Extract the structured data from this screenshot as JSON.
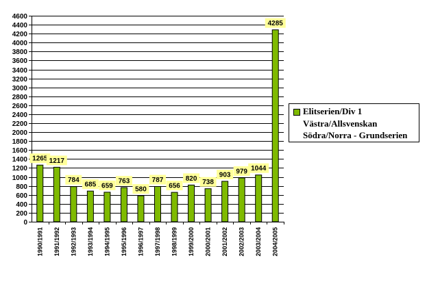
{
  "chart_data": {
    "type": "bar",
    "categories": [
      "1990/1991",
      "1991/1992",
      "1992/1993",
      "1993/1994",
      "1994/1995",
      "1995/1996",
      "1996/1997",
      "1997/1998",
      "1998/1999",
      "1999/2000",
      "2000/2001",
      "2001/2002",
      "2002/2003",
      "2003/2004",
      "2004/2005"
    ],
    "series": [
      {
        "name": "Elitserien/Div 1 Västra/Allsvenskan Södra/Norra - Grundserien",
        "values": [
          1265,
          1217,
          784,
          685,
          659,
          763,
          580,
          787,
          656,
          820,
          738,
          903,
          979,
          1044,
          4285
        ],
        "data_labels": [
          "1265",
          "1217",
          "784",
          "685",
          "659",
          "763",
          "580",
          "787",
          "656",
          "820",
          "738",
          "903",
          "979",
          "1044",
          "4285"
        ]
      }
    ],
    "ylim": [
      0,
      4600
    ],
    "yticks": [
      0,
      200,
      400,
      600,
      800,
      1000,
      1200,
      1400,
      1600,
      1800,
      2000,
      2200,
      2400,
      2600,
      2800,
      3000,
      3200,
      3400,
      3600,
      3800,
      4000,
      4200,
      4400,
      4600
    ],
    "grid": true,
    "legend_position": "right",
    "title": "",
    "xlabel": "",
    "ylabel": ""
  },
  "legend": {
    "lines": [
      "Elitserien/Div 1",
      "Västra/Allsvenskan",
      "Södra/Norra - Grundserien"
    ]
  },
  "colors": {
    "bar_fill": "#7fba00",
    "bar_edge": "#000000",
    "label_bg": "#ffff99",
    "grid": "#000000"
  }
}
